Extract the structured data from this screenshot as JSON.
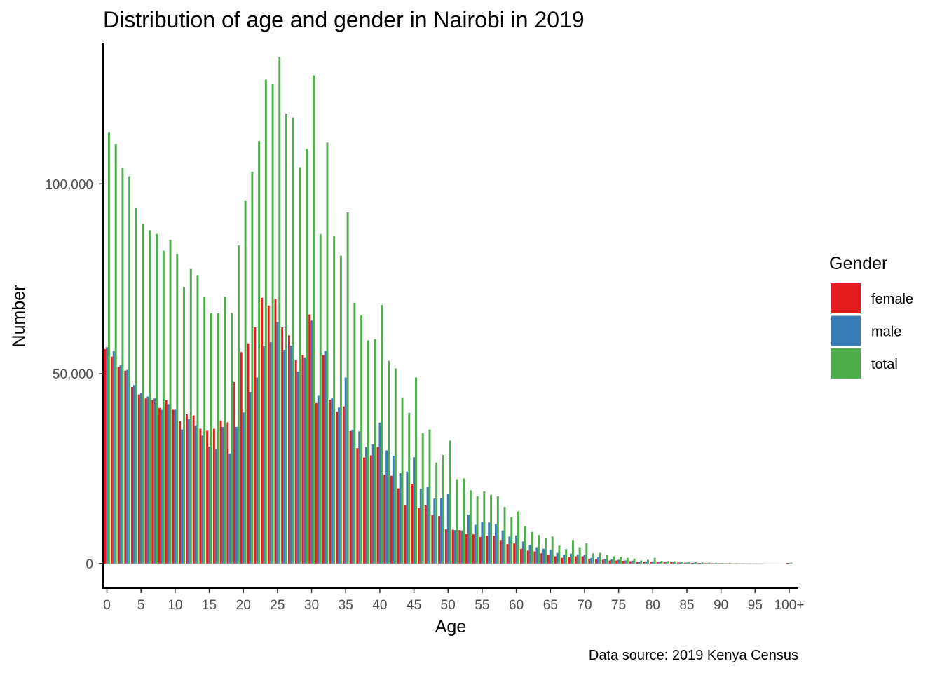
{
  "chart_data": {
    "type": "bar",
    "title": "Distribution of age and gender in Nairobi in 2019",
    "xlabel": "Age",
    "ylabel": "Number",
    "caption": "Data source: 2019 Kenya Census",
    "ylim": [
      -6500,
      137000
    ],
    "y_ticks": [
      0,
      50000,
      100000
    ],
    "y_tick_labels": [
      "0",
      "50,000",
      "100,000"
    ],
    "x_tick_labels": [
      "0",
      "5",
      "10",
      "15",
      "20",
      "25",
      "30",
      "35",
      "40",
      "45",
      "50",
      "55",
      "60",
      "65",
      "70",
      "75",
      "80",
      "85",
      "90",
      "95",
      "100+"
    ],
    "categories": [
      "0",
      "1",
      "2",
      "3",
      "4",
      "5",
      "6",
      "7",
      "8",
      "9",
      "10",
      "11",
      "12",
      "13",
      "14",
      "15",
      "16",
      "17",
      "18",
      "19",
      "20",
      "21",
      "22",
      "23",
      "24",
      "25",
      "26",
      "27",
      "28",
      "29",
      "30",
      "31",
      "32",
      "33",
      "34",
      "35",
      "36",
      "37",
      "38",
      "39",
      "40",
      "41",
      "42",
      "43",
      "44",
      "45",
      "46",
      "47",
      "48",
      "49",
      "50",
      "51",
      "52",
      "53",
      "54",
      "55",
      "56",
      "57",
      "58",
      "59",
      "60",
      "61",
      "62",
      "63",
      "64",
      "65",
      "66",
      "67",
      "68",
      "69",
      "70",
      "71",
      "72",
      "73",
      "74",
      "75",
      "76",
      "77",
      "78",
      "79",
      "80",
      "81",
      "82",
      "83",
      "84",
      "85",
      "86",
      "87",
      "88",
      "89",
      "90",
      "91",
      "92",
      "93",
      "94",
      "95",
      "96",
      "97",
      "98",
      "99",
      "100+"
    ],
    "legend": {
      "title": "Gender",
      "position": "right"
    },
    "grid": false,
    "series": [
      {
        "name": "female",
        "color": "#e41a1c",
        "values": [
          56500,
          54500,
          51800,
          50800,
          46500,
          44500,
          43500,
          43000,
          41000,
          43000,
          40500,
          37500,
          39300,
          39000,
          35500,
          35000,
          35500,
          37700,
          37200,
          47800,
          55700,
          58000,
          62200,
          70000,
          68000,
          69700,
          62200,
          60100,
          53500,
          54900,
          65600,
          42300,
          54900,
          43200,
          40000,
          41400,
          34900,
          30400,
          27900,
          28500,
          30700,
          23400,
          23100,
          19800,
          15400,
          21000,
          14600,
          15300,
          12800,
          12500,
          9000,
          8900,
          8800,
          7700,
          7700,
          7000,
          7300,
          7300,
          6200,
          5100,
          5300,
          3900,
          3400,
          3200,
          2700,
          2200,
          1900,
          1500,
          1700,
          1900,
          1900,
          1200,
          1200,
          1000,
          800,
          800,
          700,
          600,
          400,
          500,
          500,
          350,
          300,
          300,
          250,
          200,
          150,
          150,
          120,
          100,
          90,
          80,
          60,
          50,
          40,
          40,
          30,
          20,
          15,
          10,
          160
        ]
      },
      {
        "name": "male",
        "color": "#377eb8",
        "values": [
          57000,
          56000,
          52200,
          51000,
          47000,
          45000,
          44000,
          43500,
          40500,
          42000,
          40500,
          35300,
          38000,
          36400,
          33700,
          30800,
          30200,
          36000,
          29000,
          36000,
          39800,
          45200,
          49000,
          57300,
          58300,
          63600,
          56300,
          57400,
          50600,
          54300,
          64000,
          44200,
          56000,
          43500,
          41100,
          49000,
          35200,
          34800,
          30700,
          31400,
          37100,
          29800,
          28400,
          23800,
          24200,
          28000,
          19700,
          20200,
          17100,
          17200,
          18400,
          8800,
          8700,
          12900,
          10200,
          11000,
          10800,
          10400,
          8700,
          7100,
          7400,
          5800,
          4900,
          4300,
          3900,
          3700,
          2800,
          2300,
          2600,
          2400,
          2300,
          1500,
          1600,
          1200,
          1100,
          1000,
          800,
          750,
          500,
          550,
          550,
          400,
          350,
          350,
          300,
          250,
          200,
          150,
          130,
          110,
          90,
          80,
          60,
          50,
          40,
          40,
          30,
          20,
          15,
          10,
          110
        ]
      },
      {
        "name": "total",
        "color": "#4daf4a",
        "values": [
          113500,
          110500,
          104200,
          102000,
          93800,
          89500,
          87800,
          86800,
          82400,
          85300,
          81500,
          72800,
          77600,
          76000,
          70200,
          65900,
          65900,
          70300,
          66000,
          83800,
          95500,
          103200,
          111300,
          127500,
          126300,
          133300,
          118500,
          117500,
          104400,
          109200,
          128600,
          86800,
          110900,
          86300,
          81100,
          92500,
          68700,
          65400,
          58800,
          59100,
          68100,
          53400,
          51400,
          43600,
          39700,
          49000,
          34300,
          35300,
          26600,
          28600,
          32400,
          22200,
          22400,
          19300,
          17700,
          19000,
          18100,
          17700,
          14900,
          12200,
          13700,
          9800,
          8300,
          7500,
          6600,
          7100,
          4700,
          3800,
          6200,
          4300,
          5300,
          2700,
          2800,
          2200,
          1900,
          1800,
          1500,
          1300,
          800,
          1000,
          1500,
          700,
          650,
          600,
          500,
          450,
          350,
          300,
          250,
          200,
          180,
          150,
          120,
          100,
          80,
          70,
          60,
          40,
          30,
          20,
          250
        ]
      }
    ]
  }
}
